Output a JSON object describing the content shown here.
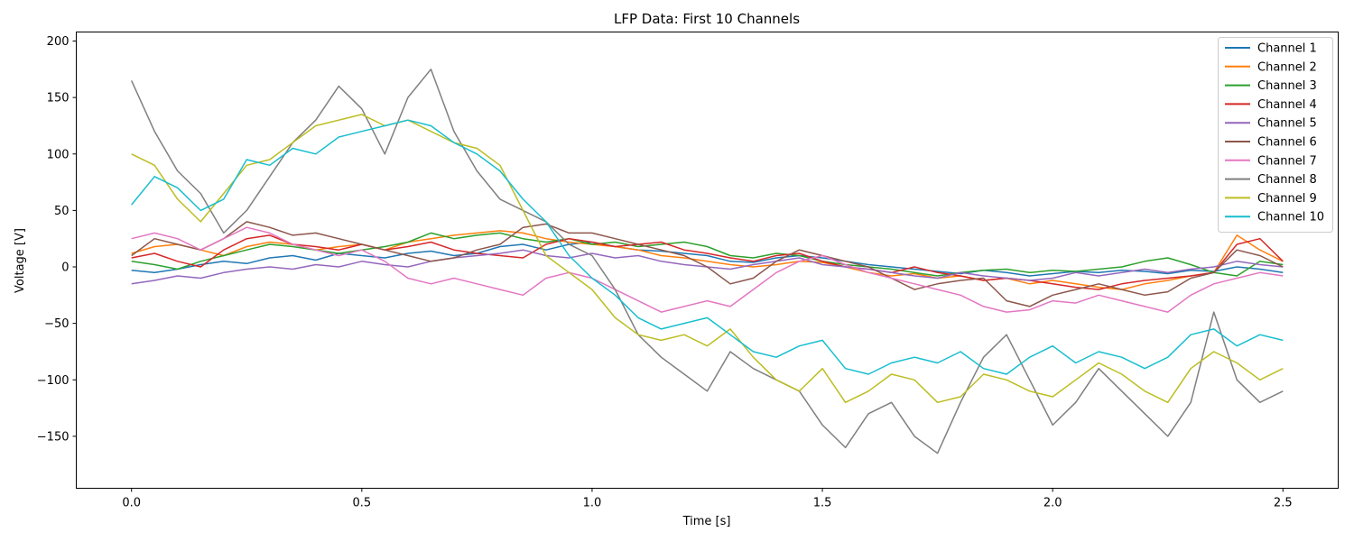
{
  "chart_data": {
    "type": "line",
    "title": "LFP Data: First 10 Channels",
    "xlabel": "Time [s]",
    "ylabel": "Voltage [V]",
    "xlim": [
      -0.12,
      2.62
    ],
    "ylim": [
      -196,
      208
    ],
    "xticks": [
      0.0,
      0.5,
      1.0,
      1.5,
      2.0,
      2.5
    ],
    "xtick_labels": [
      "0.0",
      "0.5",
      "1.0",
      "1.5",
      "2.0",
      "2.5"
    ],
    "yticks": [
      -150,
      -100,
      -50,
      0,
      50,
      100,
      150,
      200
    ],
    "ytick_labels": [
      "−150",
      "−100",
      "−50",
      "0",
      "50",
      "100",
      "150",
      "200"
    ],
    "grid": false,
    "legend_position": "upper right",
    "x": [
      0.0,
      0.05,
      0.1,
      0.15,
      0.2,
      0.25,
      0.3,
      0.35,
      0.4,
      0.45,
      0.5,
      0.55,
      0.6,
      0.65,
      0.7,
      0.75,
      0.8,
      0.85,
      0.9,
      0.95,
      1.0,
      1.05,
      1.1,
      1.15,
      1.2,
      1.25,
      1.3,
      1.35,
      1.4,
      1.45,
      1.5,
      1.55,
      1.6,
      1.65,
      1.7,
      1.75,
      1.8,
      1.85,
      1.9,
      1.95,
      2.0,
      2.05,
      2.1,
      2.15,
      2.2,
      2.25,
      2.3,
      2.35,
      2.4,
      2.45,
      2.5
    ],
    "series": [
      {
        "name": "Channel 1",
        "color": "#1f77b4",
        "values": [
          -3,
          -5,
          -2,
          2,
          5,
          3,
          8,
          10,
          6,
          12,
          10,
          8,
          12,
          14,
          10,
          12,
          18,
          20,
          15,
          20,
          22,
          18,
          15,
          14,
          12,
          10,
          5,
          4,
          8,
          10,
          8,
          5,
          2,
          0,
          -2,
          -4,
          -6,
          -3,
          -5,
          -8,
          -6,
          -4,
          -5,
          -3,
          -4,
          -6,
          -3,
          -4,
          0,
          -2,
          -5
        ]
      },
      {
        "name": "Channel 2",
        "color": "#ff7f0e",
        "values": [
          12,
          18,
          20,
          15,
          10,
          18,
          22,
          20,
          15,
          18,
          20,
          15,
          22,
          25,
          28,
          30,
          32,
          30,
          25,
          22,
          20,
          18,
          15,
          10,
          8,
          5,
          2,
          0,
          2,
          5,
          4,
          0,
          -5,
          -8,
          -6,
          -10,
          -8,
          -12,
          -10,
          -15,
          -12,
          -15,
          -18,
          -20,
          -15,
          -12,
          -8,
          -5,
          28,
          15,
          5
        ]
      },
      {
        "name": "Channel 3",
        "color": "#2ca02c",
        "values": [
          5,
          2,
          -2,
          5,
          10,
          15,
          20,
          18,
          15,
          12,
          15,
          18,
          22,
          30,
          25,
          28,
          30,
          25,
          22,
          25,
          20,
          22,
          18,
          20,
          22,
          18,
          10,
          8,
          12,
          10,
          5,
          2,
          0,
          -2,
          -5,
          -8,
          -5,
          -3,
          -2,
          -5,
          -3,
          -4,
          -2,
          0,
          5,
          8,
          2,
          -5,
          -8,
          5,
          2
        ]
      },
      {
        "name": "Channel 4",
        "color": "#d62728",
        "values": [
          8,
          12,
          5,
          0,
          15,
          25,
          28,
          20,
          18,
          15,
          20,
          15,
          18,
          22,
          15,
          12,
          10,
          8,
          20,
          25,
          22,
          18,
          20,
          22,
          15,
          12,
          8,
          5,
          10,
          12,
          5,
          0,
          -2,
          -5,
          0,
          -5,
          -8,
          -12,
          -10,
          -12,
          -15,
          -18,
          -20,
          -15,
          -12,
          -10,
          -8,
          -5,
          20,
          25,
          5
        ]
      },
      {
        "name": "Channel 5",
        "color": "#9467bd",
        "values": [
          -15,
          -12,
          -8,
          -10,
          -5,
          -2,
          0,
          -2,
          2,
          0,
          5,
          2,
          0,
          5,
          8,
          10,
          12,
          15,
          10,
          8,
          12,
          8,
          10,
          5,
          2,
          0,
          -2,
          2,
          5,
          8,
          2,
          0,
          -2,
          -5,
          -8,
          -10,
          -5,
          -8,
          -10,
          -12,
          -10,
          -5,
          -8,
          -5,
          -2,
          -5,
          -2,
          0,
          5,
          2,
          0
        ]
      },
      {
        "name": "Channel 6",
        "color": "#8c564b",
        "values": [
          10,
          25,
          20,
          15,
          25,
          40,
          35,
          28,
          30,
          25,
          20,
          15,
          10,
          5,
          8,
          15,
          20,
          35,
          38,
          30,
          30,
          25,
          20,
          15,
          10,
          0,
          -15,
          -10,
          5,
          15,
          10,
          5,
          0,
          -10,
          -20,
          -15,
          -12,
          -10,
          -30,
          -35,
          -25,
          -20,
          -15,
          -20,
          -25,
          -22,
          -10,
          -5,
          15,
          10,
          0
        ]
      },
      {
        "name": "Channel 7",
        "color": "#e377c2",
        "values": [
          25,
          30,
          25,
          15,
          25,
          35,
          30,
          20,
          15,
          10,
          15,
          5,
          -10,
          -15,
          -10,
          -15,
          -20,
          -25,
          -10,
          -5,
          -10,
          -20,
          -30,
          -40,
          -35,
          -30,
          -35,
          -20,
          -5,
          5,
          10,
          2,
          -5,
          -10,
          -15,
          -20,
          -25,
          -35,
          -40,
          -38,
          -30,
          -32,
          -25,
          -30,
          -35,
          -40,
          -25,
          -15,
          -10,
          -5,
          -8
        ]
      },
      {
        "name": "Channel 8",
        "color": "#7f7f7f",
        "values": [
          165,
          120,
          85,
          65,
          30,
          50,
          80,
          110,
          130,
          160,
          140,
          100,
          150,
          175,
          120,
          85,
          60,
          50,
          40,
          20,
          10,
          -20,
          -60,
          -80,
          -95,
          -110,
          -75,
          -90,
          -100,
          -110,
          -140,
          -160,
          -130,
          -120,
          -150,
          -165,
          -120,
          -80,
          -60,
          -100,
          -140,
          -120,
          -90,
          -110,
          -130,
          -150,
          -120,
          -40,
          -100,
          -120,
          -110
        ]
      },
      {
        "name": "Channel 9",
        "color": "#bcbd22",
        "values": [
          100,
          90,
          60,
          40,
          65,
          90,
          95,
          110,
          125,
          130,
          135,
          125,
          130,
          120,
          110,
          105,
          90,
          50,
          10,
          -5,
          -20,
          -45,
          -60,
          -65,
          -60,
          -70,
          -55,
          -80,
          -100,
          -110,
          -90,
          -120,
          -110,
          -95,
          -100,
          -120,
          -115,
          -95,
          -100,
          -110,
          -115,
          -100,
          -85,
          -95,
          -110,
          -120,
          -90,
          -75,
          -85,
          -100,
          -90
        ]
      },
      {
        "name": "Channel 10",
        "color": "#17becf",
        "values": [
          55,
          80,
          70,
          50,
          60,
          95,
          90,
          105,
          100,
          115,
          120,
          125,
          130,
          125,
          110,
          100,
          85,
          60,
          40,
          10,
          -10,
          -25,
          -45,
          -55,
          -50,
          -45,
          -60,
          -75,
          -80,
          -70,
          -65,
          -90,
          -95,
          -85,
          -80,
          -85,
          -75,
          -90,
          -95,
          -80,
          -70,
          -85,
          -75,
          -80,
          -90,
          -80,
          -60,
          -55,
          -70,
          -60,
          -65
        ]
      }
    ]
  }
}
